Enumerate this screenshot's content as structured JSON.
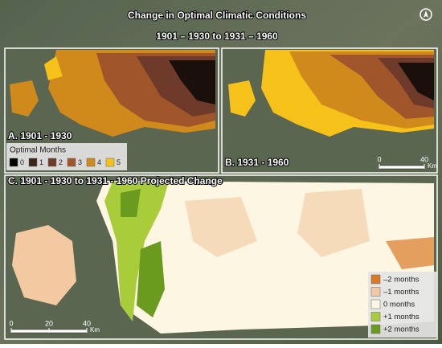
{
  "title": [
    "Change in Optimal Climatic Conditions",
    "1901 – 1930 to 1931 – 1960"
  ],
  "panels": {
    "a": "A. 1901 - 1930",
    "b": "B. 1931 - 1960",
    "c": "C. 1901 - 1930 to 1931 - 1960 Projected Change"
  },
  "optimal_months": {
    "title": "Optimal Months",
    "items": [
      {
        "value": 0,
        "color": "#000000"
      },
      {
        "value": 1,
        "color": "#3d2218"
      },
      {
        "value": 2,
        "color": "#6e3b2a"
      },
      {
        "value": 3,
        "color": "#a0562a"
      },
      {
        "value": 4,
        "color": "#d08a1c"
      },
      {
        "value": 5,
        "color": "#f6c21a"
      }
    ]
  },
  "change_legend": [
    {
      "label": "–2 months",
      "color": "#d97a26"
    },
    {
      "label": "–1 months",
      "color": "#f2c9a0"
    },
    {
      "label": "0 months",
      "color": "#fdf6e3"
    },
    {
      "label": "+1 months",
      "color": "#a8cc3a"
    },
    {
      "label": "+2 months",
      "color": "#6a9a1e"
    }
  ],
  "scale_b": {
    "ticks": [
      0,
      40
    ],
    "unit": "Km"
  },
  "scale_c": {
    "ticks": [
      0,
      20,
      40
    ],
    "unit": "Km"
  }
}
